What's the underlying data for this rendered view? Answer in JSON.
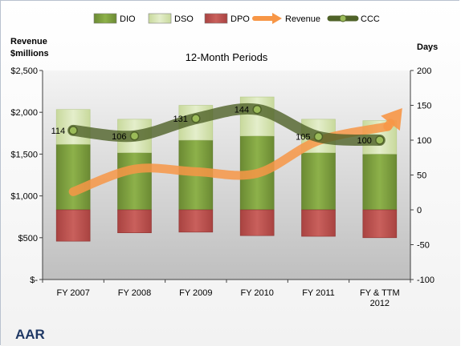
{
  "chart_data": {
    "type": "bar",
    "title": "12-Month Periods",
    "company": "AAR",
    "categories": [
      "FY 2007",
      "FY 2008",
      "FY 2009",
      "FY 2010",
      "FY 2011",
      "FY & TTM 2012"
    ],
    "left_axis": {
      "label": "Revenue $millions",
      "label_lines": [
        "Revenue",
        "$millions"
      ],
      "ylim": [
        0,
        2500
      ],
      "ticks": [
        0,
        500,
        1000,
        1500,
        2000,
        2500
      ],
      "tick_labels": [
        "$-",
        "$500",
        "$1,000",
        "$1,500",
        "$2,000",
        "$2,500"
      ]
    },
    "right_axis": {
      "label": "Days",
      "ylim": [
        -100,
        200
      ],
      "ticks": [
        -100,
        -50,
        0,
        50,
        100,
        150,
        200
      ],
      "tick_labels": [
        "-100",
        "-50",
        "0",
        "50",
        "100",
        "150",
        "200"
      ]
    },
    "legend": {
      "position": "top",
      "entries": [
        {
          "name": "DIO",
          "color": "#77933c"
        },
        {
          "name": "DSO",
          "color": "#d7e4bd"
        },
        {
          "name": "DPO",
          "color": "#c0504d"
        },
        {
          "name": "Revenue",
          "color": "#f79646"
        },
        {
          "name": "CCC",
          "color": "#4f6228"
        }
      ]
    },
    "series": [
      {
        "name": "DIO",
        "axis": "right",
        "kind": "stacked_bar",
        "color": "#77933c",
        "values": [
          94,
          82,
          100,
          106,
          82,
          80
        ]
      },
      {
        "name": "DSO",
        "axis": "right",
        "kind": "stacked_bar",
        "color": "#d7e4bd",
        "values": [
          50,
          48,
          50,
          56,
          48,
          48
        ]
      },
      {
        "name": "DPO",
        "axis": "right",
        "kind": "negative_bar",
        "color": "#c0504d",
        "values": [
          -45,
          -33,
          -32,
          -37,
          -38,
          -40
        ]
      },
      {
        "name": "Revenue",
        "axis": "left",
        "kind": "line",
        "color": "#f79646",
        "values": [
          1050,
          1320,
          1290,
          1270,
          1660,
          1830
        ],
        "arrow_end": 2050
      },
      {
        "name": "CCC",
        "axis": "right",
        "kind": "line",
        "color": "#4f6228",
        "values": [
          114,
          106,
          131,
          144,
          105,
          100
        ],
        "labels": [
          "114",
          "106",
          "131",
          "144",
          "105",
          "100"
        ]
      }
    ],
    "grid": false,
    "plot_background": "gradient gray"
  }
}
